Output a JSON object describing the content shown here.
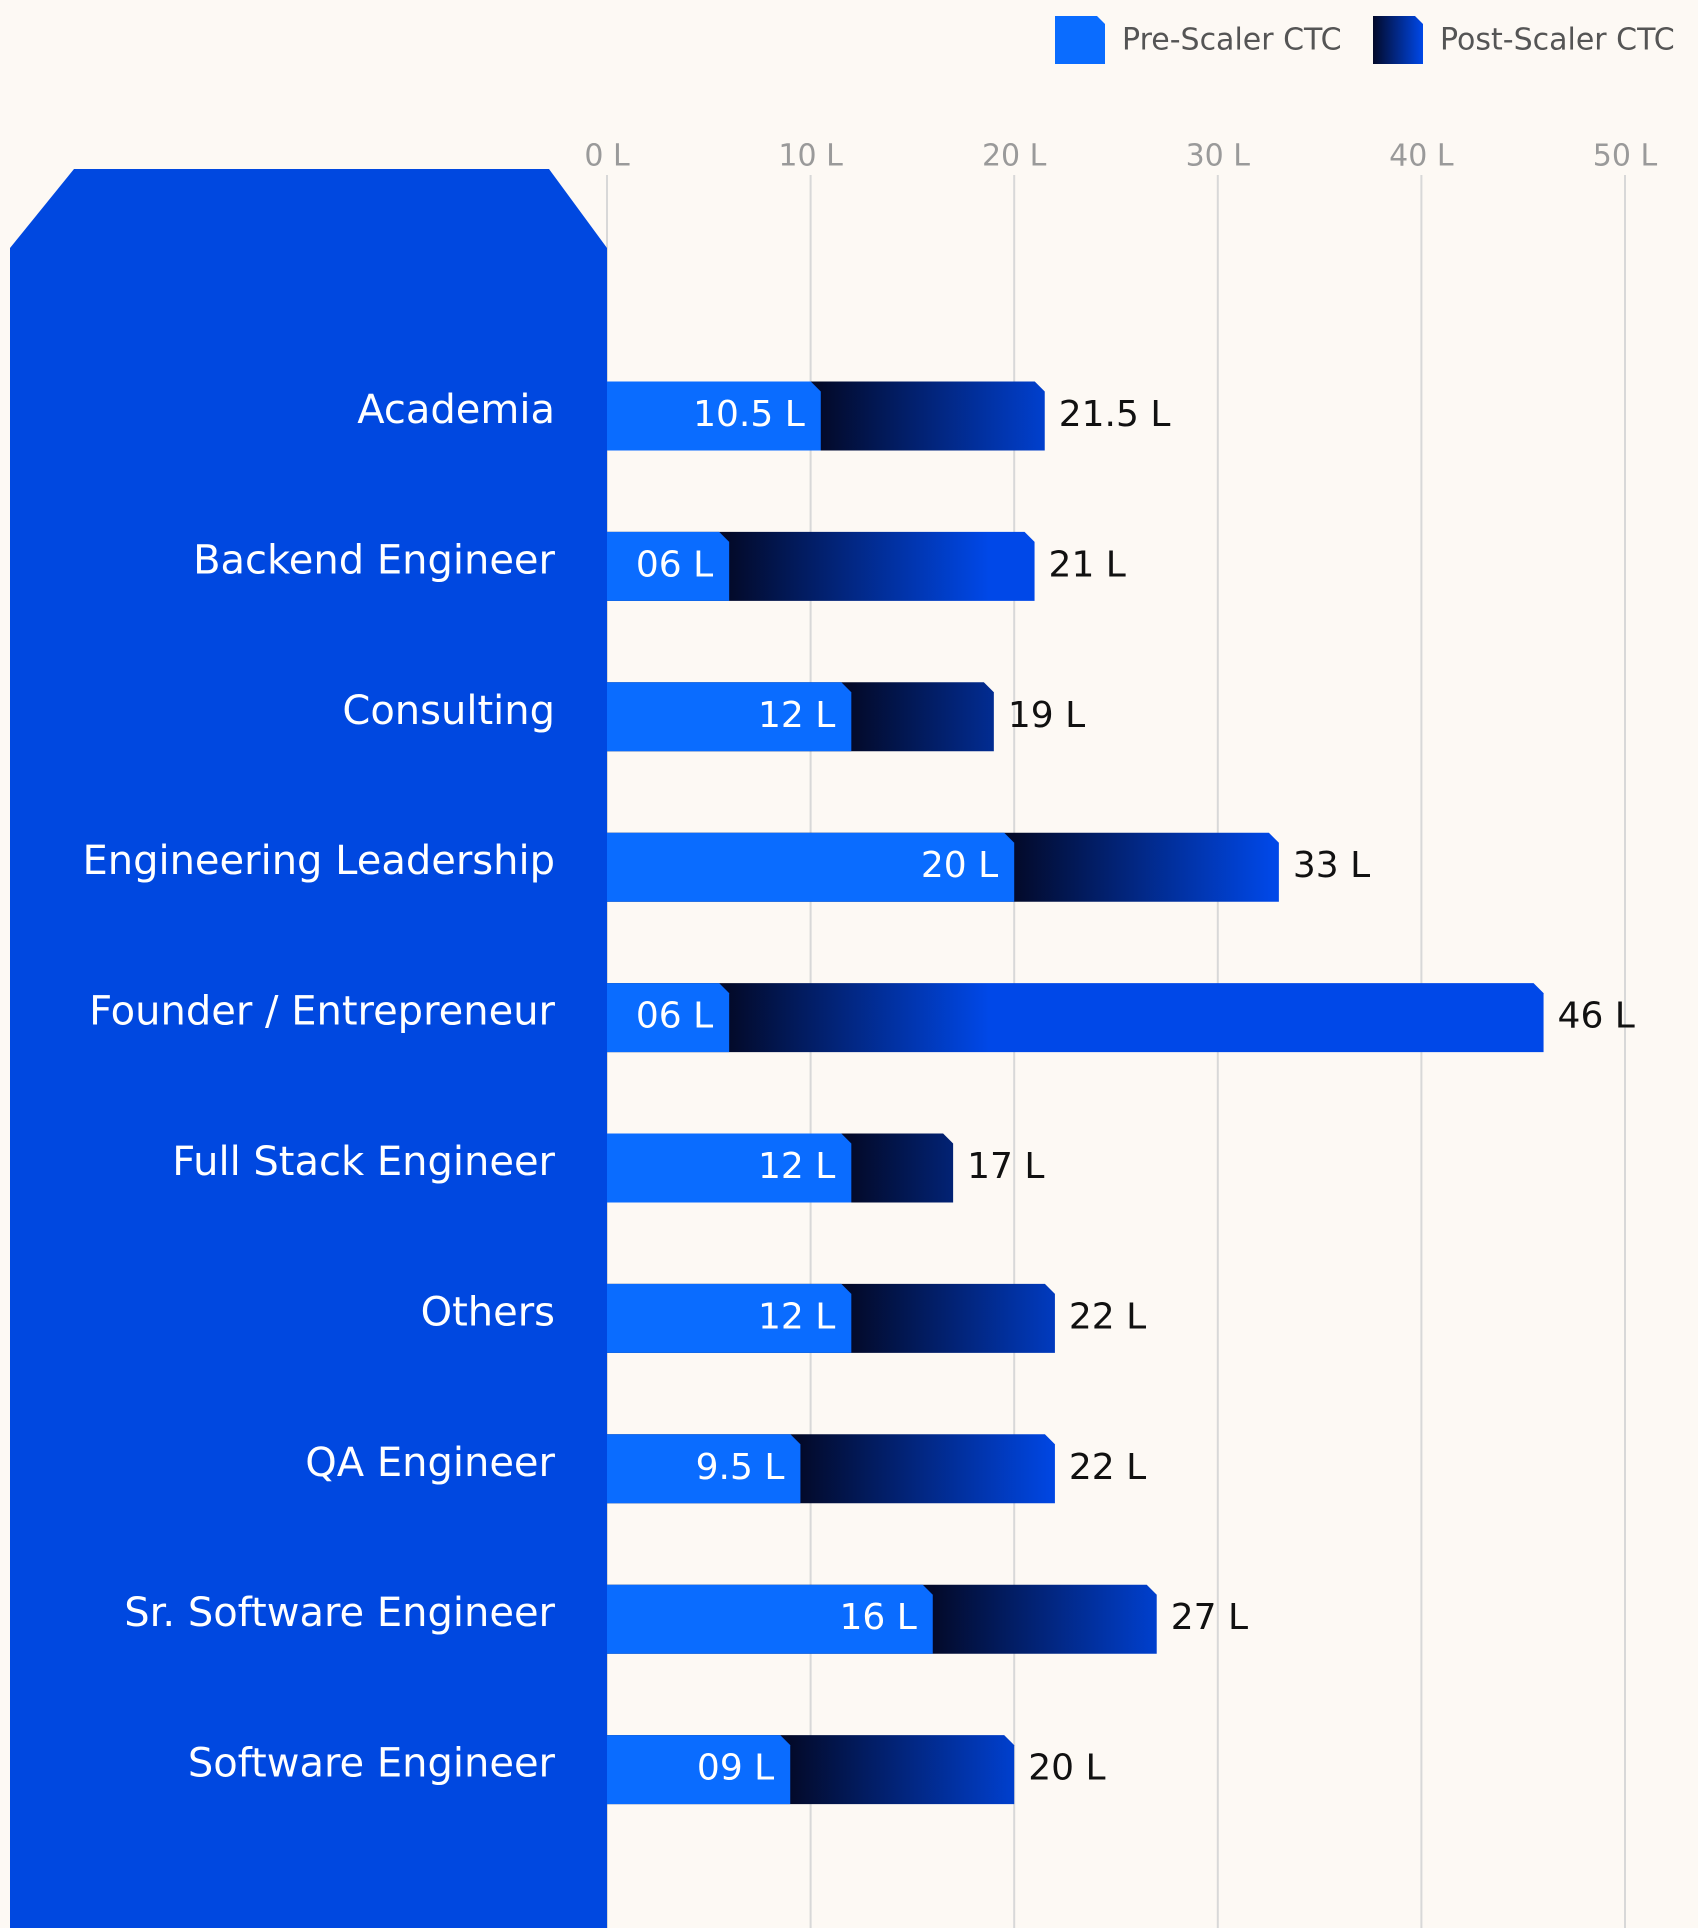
{
  "chart_data": {
    "type": "bar",
    "orientation": "horizontal",
    "categories": [
      "Academia",
      "Backend Engineer",
      "Consulting",
      "Engineering Leadership",
      "Founder / Entrepreneur",
      "Full Stack Engineer",
      "Others",
      "QA Engineer",
      "Sr. Software Engineer",
      "Software Engineer"
    ],
    "series": [
      {
        "name": "Pre-Scaler CTC",
        "color": "#0a6cff",
        "values": [
          10.5,
          6,
          12,
          20,
          6,
          12,
          12,
          9.5,
          16,
          9
        ],
        "value_labels": [
          "10.5 L",
          "06 L",
          "12 L",
          "20 L",
          "06 L",
          "12 L",
          "12 L",
          "9.5 L",
          "16 L",
          "09 L"
        ]
      },
      {
        "name": "Post-Scaler CTC",
        "color": "#0048e8",
        "values": [
          21.5,
          21,
          19,
          33,
          46,
          17,
          22,
          22,
          27,
          20
        ],
        "value_labels": [
          "21.5 L",
          "21 L",
          "19 L",
          "33 L",
          "46 L",
          "17 L",
          "22 L",
          "22 L",
          "27 L",
          "20 L"
        ]
      }
    ],
    "xlim": [
      0,
      50
    ],
    "xticks": [
      {
        "value": 0,
        "label": "0 L"
      },
      {
        "value": 10,
        "label": "10 L"
      },
      {
        "value": 20,
        "label": "20 L"
      },
      {
        "value": 30,
        "label": "30 L"
      },
      {
        "value": 40,
        "label": "40 L"
      },
      {
        "value": 50,
        "label": "50 L"
      }
    ],
    "grid": true,
    "legend": "top-right"
  }
}
